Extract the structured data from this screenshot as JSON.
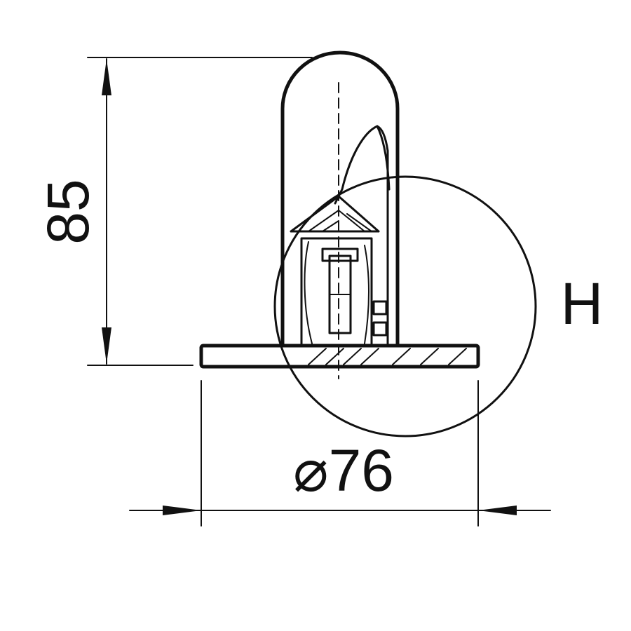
{
  "dimensions": {
    "height": "85",
    "diameter_symbol": "⌀",
    "diameter_value": "76"
  },
  "detail_label": "H",
  "colors": {
    "ink": "#111111",
    "background": "#ffffff"
  }
}
